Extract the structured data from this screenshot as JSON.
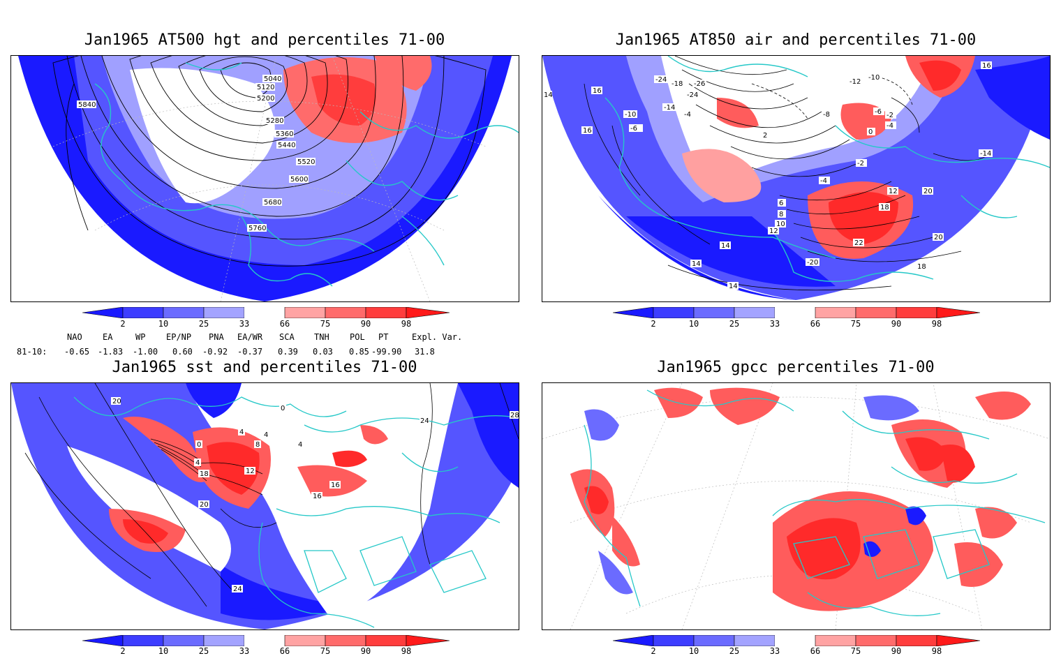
{
  "panels": [
    {
      "title": "Jan1965 AT500 hgt and percentiles 71-00",
      "contour_labels": [
        "5040",
        "5120",
        "5200",
        "5280",
        "5360",
        "5440",
        "5520",
        "5600",
        "5680",
        "5760",
        "5840"
      ]
    },
    {
      "title": "Jan1965 AT850 air and percentiles 71-00",
      "contour_labels": [
        "-24",
        "-18",
        "-26",
        "-24",
        "-14",
        "-10",
        "-6",
        "-4",
        "-12",
        "-10",
        "-6",
        "-8",
        "-4",
        "-2",
        "0",
        "2",
        "-2",
        "-4",
        "-14",
        "16",
        "16",
        "16",
        "14",
        "6",
        "8",
        "10",
        "12",
        "12",
        "14",
        "18",
        "20",
        "20",
        "22",
        "-20",
        "14",
        "14",
        "18"
      ]
    },
    {
      "title": "Jan1965 sst and percentiles 71-00",
      "contour_labels": [
        "20",
        "0",
        "4",
        "8",
        "4",
        "4",
        "0",
        "4",
        "18",
        "12",
        "20",
        "16",
        "16",
        "24",
        "28",
        "24"
      ]
    },
    {
      "title": "Jan1965 gpcc percentiles 71-00",
      "contour_labels": []
    }
  ],
  "colorbar": {
    "labels": [
      "2",
      "10",
      "25",
      "33",
      "66",
      "75",
      "90",
      "98"
    ],
    "colors": [
      "#1a1aff",
      "#3d3dff",
      "#6b6bff",
      "#a3a3ff",
      "#ffffff",
      "#ffa3a3",
      "#ff6b6b",
      "#ff3d3d",
      "#ff1a1a"
    ]
  },
  "teleconnections": {
    "headers": [
      "NAO",
      "EA",
      "WP",
      "EP/NP",
      "PNA",
      "EA/WR",
      "SCA",
      "TNH",
      "POL",
      "PT",
      "Expl. Var."
    ],
    "row_label": "81-10:",
    "values": [
      "-0.65",
      "-1.83",
      "-1.00",
      "0.60",
      "-0.92",
      "-0.37",
      "0.39",
      "0.03",
      "0.85",
      "-99.90",
      "31.8"
    ]
  },
  "colors": {
    "coast": "#25c8c8",
    "blue_deep": "#1a1aff",
    "blue_mid": "#5555ff",
    "blue_light": "#a0a0ff",
    "red_light": "#ffa0a0",
    "red_mid": "#ff5c5c",
    "red_deep": "#ff2a2a"
  }
}
